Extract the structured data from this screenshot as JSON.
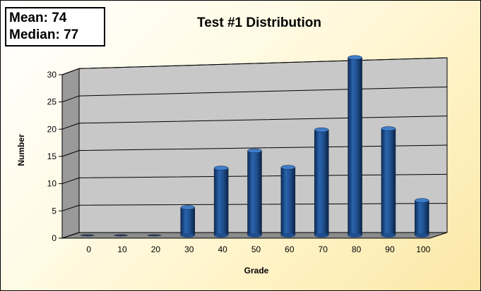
{
  "stats": {
    "mean_label": "Mean:",
    "mean_value": "74",
    "median_label": "Median:",
    "median_value": "77"
  },
  "chart_data": {
    "type": "bar",
    "title": "Test #1 Distribution",
    "xlabel": "Grade",
    "ylabel": "Number",
    "categories": [
      "0",
      "10",
      "20",
      "30",
      "40",
      "50",
      "60",
      "70",
      "80",
      "90",
      "100"
    ],
    "values": [
      0,
      0,
      0,
      5,
      12,
      15,
      12,
      18.5,
      31,
      18.5,
      6
    ],
    "ylim": [
      0,
      30
    ],
    "yticks": [
      0,
      5,
      10,
      15,
      20,
      25,
      30
    ],
    "grid": true,
    "three_d": true,
    "bar_color": "#1f4e8c",
    "wall_color": "#c8c8c8"
  }
}
